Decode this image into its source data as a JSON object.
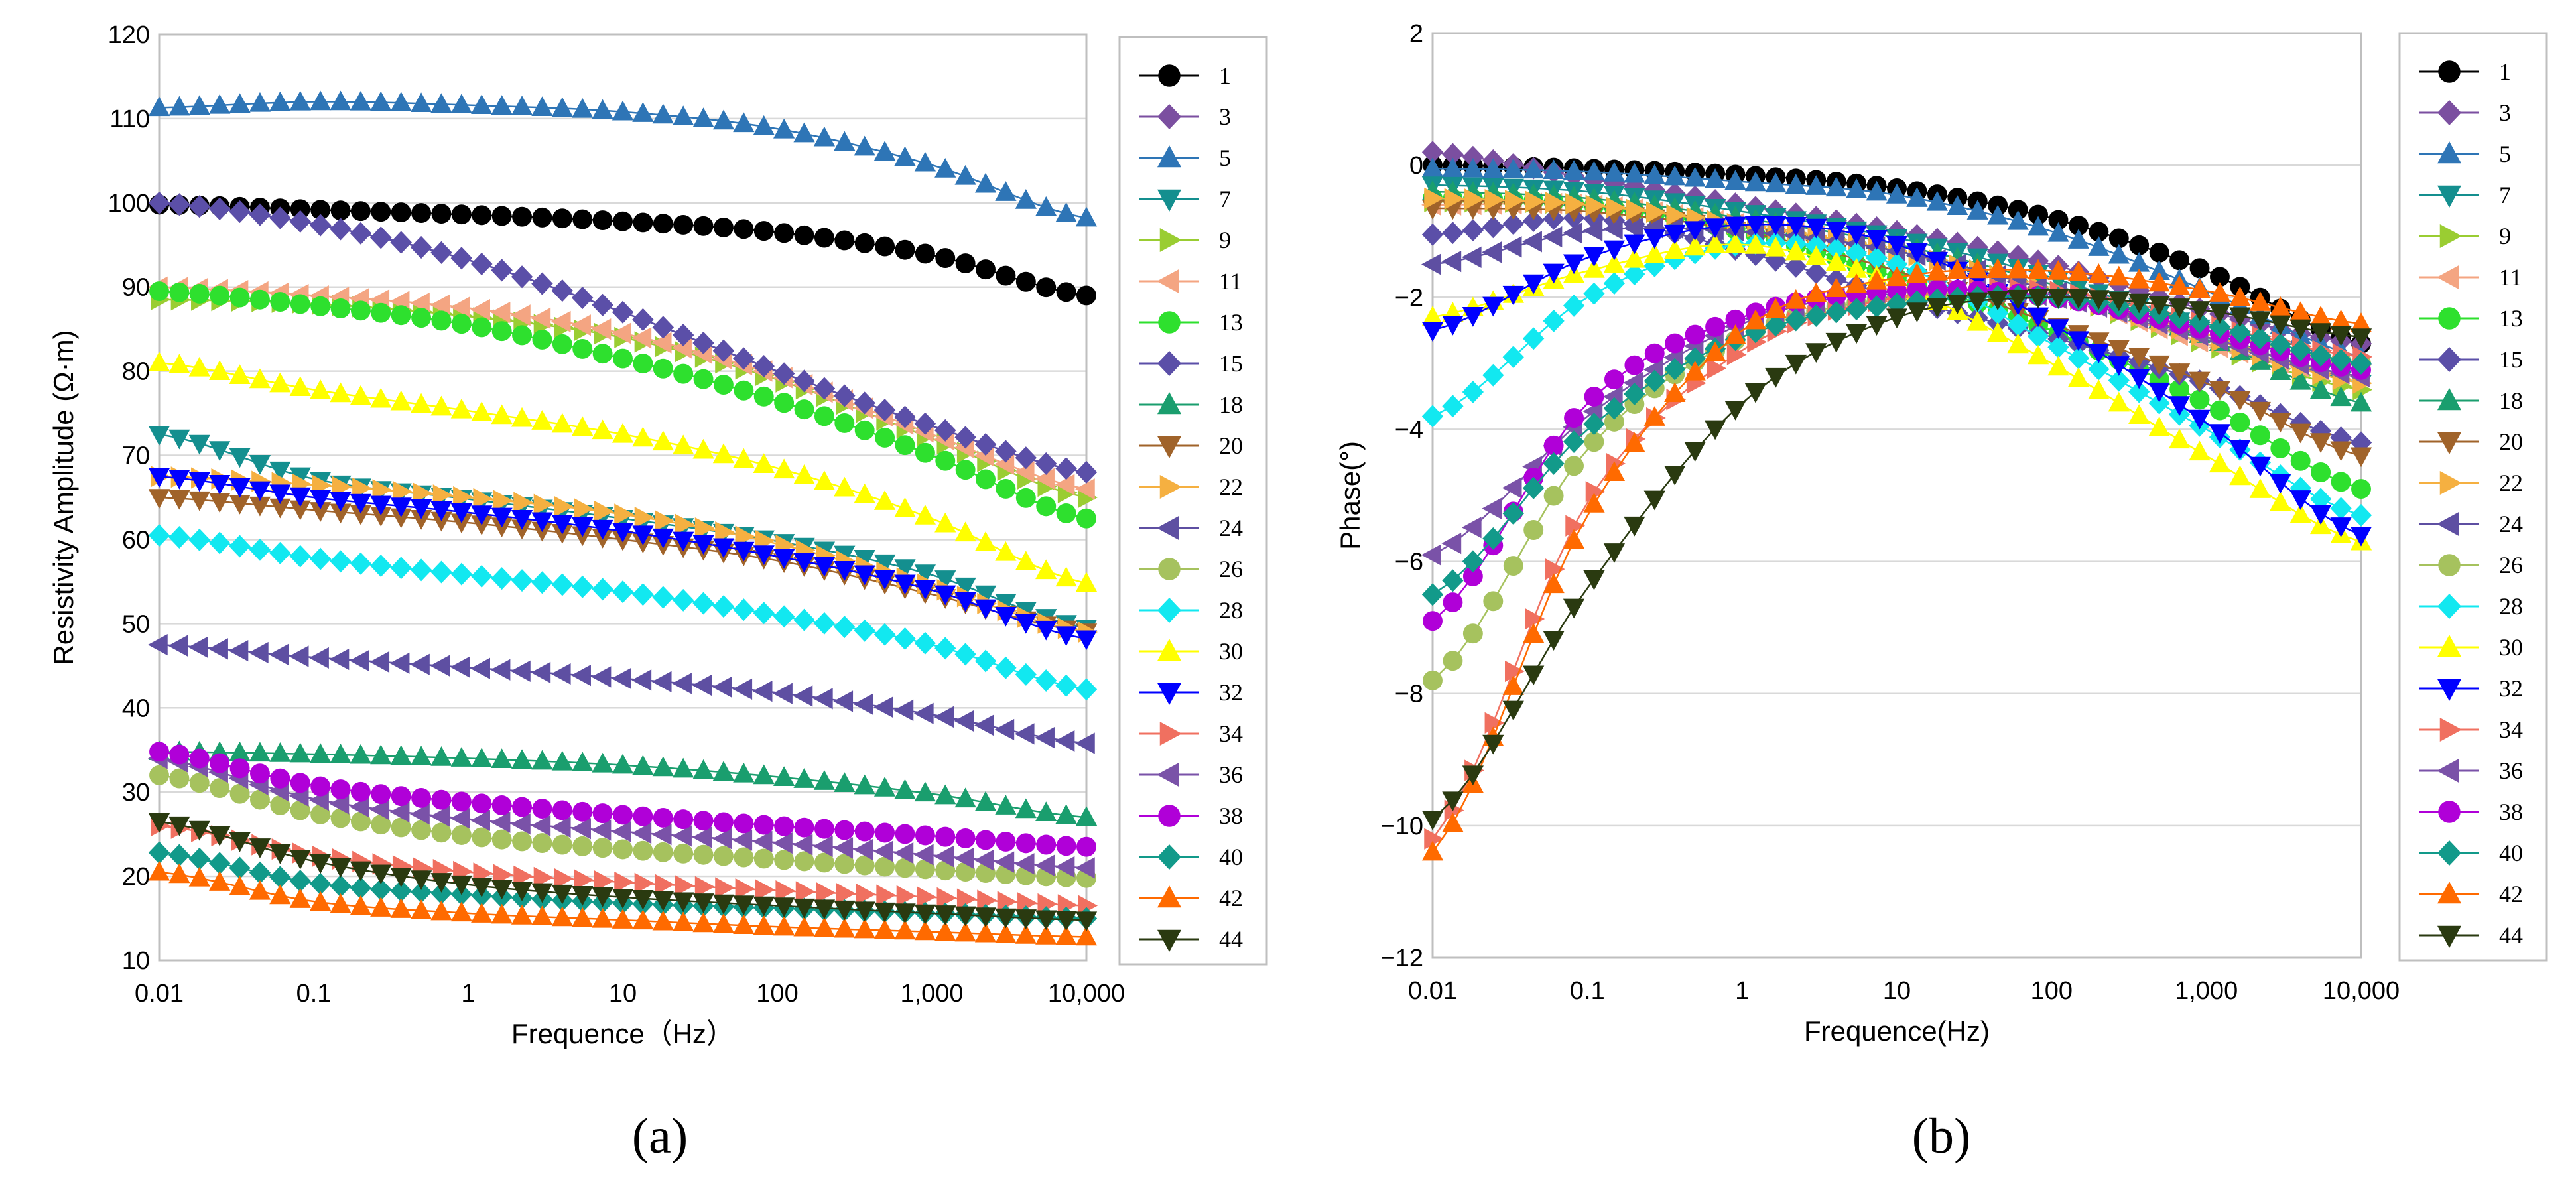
{
  "figure": {
    "captions": [
      "(a)",
      "(b)"
    ],
    "colors": {
      "1": "#000000",
      "3": "#7b4fa0",
      "5": "#2e75b6",
      "7": "#148f8f",
      "9": "#9acd32",
      "11": "#f4a582",
      "13": "#2ee02e",
      "15": "#5b4fa8",
      "18": "#1a9e6e",
      "20": "#a0632a",
      "22": "#f5b041",
      "24": "#5e4fa2",
      "26": "#a6c25e",
      "28": "#12e8f0",
      "30": "#ffff00",
      "32": "#0000ff",
      "34": "#f07060",
      "36": "#7a52a8",
      "38": "#b000d8",
      "40": "#129a8a",
      "42": "#ff6a00",
      "44": "#2a3a10"
    },
    "markers": {
      "1": "circle",
      "3": "diamond",
      "5": "triangle-up",
      "7": "triangle-down",
      "9": "triangle-right",
      "11": "triangle-left",
      "13": "circle",
      "15": "diamond",
      "18": "triangle-up",
      "20": "triangle-down",
      "22": "triangle-right",
      "24": "triangle-left",
      "26": "circle",
      "28": "diamond",
      "30": "triangle-up",
      "32": "triangle-down",
      "34": "triangle-right",
      "36": "triangle-left",
      "38": "circle",
      "40": "diamond",
      "42": "triangle-up",
      "44": "triangle-down"
    }
  },
  "chart_data": [
    {
      "type": "scatter",
      "panel": "(a)",
      "title": "",
      "xlabel": "Frequence（Hz）",
      "ylabel": "Resistivity Amplitude (Ω·m)",
      "xscale": "log",
      "xlim": [
        0.01,
        10000
      ],
      "ylim": [
        10,
        120
      ],
      "x_ticks": [
        0.01,
        0.1,
        1,
        10,
        100,
        1000,
        10000
      ],
      "x_tick_labels": [
        "0.01",
        "0.1",
        "1",
        "10",
        "100",
        "1,000",
        "10,000"
      ],
      "y_ticks": [
        10,
        20,
        30,
        40,
        50,
        60,
        70,
        80,
        90,
        100,
        110,
        120
      ],
      "y_tick_labels": [
        "10",
        "20",
        "30",
        "40",
        "50",
        "60",
        "70",
        "80",
        "90",
        "100",
        "110",
        "120"
      ],
      "grid": "horizontal",
      "legend": "right",
      "x_samples": [
        0.01,
        0.1,
        1,
        10,
        100,
        1000,
        10000
      ],
      "series": [
        {
          "name": "1",
          "values": [
            99.8,
            99.2,
            98.6,
            97.8,
            96.5,
            93.8,
            89.0
          ]
        },
        {
          "name": "3",
          "values": [
            100.0,
            97.5,
            93.2,
            87.0,
            80.0,
            73.5,
            68.0
          ]
        },
        {
          "name": "5",
          "values": [
            111.3,
            112.0,
            111.6,
            110.8,
            108.8,
            104.5,
            98.2
          ]
        },
        {
          "name": "7",
          "values": [
            72.5,
            67.2,
            64.8,
            62.5,
            59.8,
            55.8,
            49.5
          ]
        },
        {
          "name": "9",
          "values": [
            88.5,
            88.0,
            86.5,
            84.0,
            79.0,
            72.0,
            65.0
          ]
        },
        {
          "name": "11",
          "values": [
            90.0,
            89.0,
            87.5,
            84.5,
            79.5,
            72.5,
            66.0
          ]
        },
        {
          "name": "13",
          "values": [
            89.5,
            87.8,
            85.5,
            81.5,
            76.5,
            70.0,
            62.5
          ]
        },
        {
          "name": "15",
          "values": [
            100.0,
            97.5,
            93.2,
            87.0,
            80.0,
            73.5,
            68.0
          ]
        },
        {
          "name": "18",
          "values": [
            34.8,
            34.5,
            34.0,
            33.2,
            31.8,
            29.8,
            27.0
          ]
        },
        {
          "name": "20",
          "values": [
            65.0,
            63.5,
            62.0,
            60.0,
            57.5,
            53.5,
            49.0
          ]
        },
        {
          "name": "22",
          "values": [
            67.5,
            66.5,
            65.0,
            63.0,
            59.5,
            54.5,
            49.0
          ]
        },
        {
          "name": "24",
          "values": [
            47.5,
            46.0,
            44.8,
            43.5,
            41.8,
            39.2,
            35.8
          ]
        },
        {
          "name": "26",
          "values": [
            32.0,
            27.5,
            24.8,
            23.2,
            22.0,
            20.8,
            19.8
          ]
        },
        {
          "name": "28",
          "values": [
            60.5,
            57.8,
            55.8,
            53.8,
            51.0,
            47.5,
            42.2
          ]
        },
        {
          "name": "30",
          "values": [
            81.0,
            77.8,
            75.3,
            72.5,
            68.5,
            62.5,
            54.8
          ]
        },
        {
          "name": "32",
          "values": [
            67.5,
            65.0,
            63.2,
            61.0,
            58.0,
            54.0,
            48.2
          ]
        },
        {
          "name": "34",
          "values": [
            26.0,
            22.5,
            20.5,
            19.3,
            18.3,
            17.5,
            16.5
          ]
        },
        {
          "name": "36",
          "values": [
            34.0,
            29.2,
            26.8,
            25.3,
            24.0,
            22.5,
            21.0
          ]
        },
        {
          "name": "38",
          "values": [
            34.8,
            30.8,
            28.8,
            27.3,
            26.0,
            24.8,
            23.5
          ]
        },
        {
          "name": "40",
          "values": [
            22.8,
            19.2,
            17.8,
            16.8,
            16.2,
            15.6,
            15.0
          ]
        },
        {
          "name": "42",
          "values": [
            20.5,
            17.0,
            15.6,
            14.8,
            14.0,
            13.4,
            12.8
          ]
        },
        {
          "name": "44",
          "values": [
            26.5,
            21.8,
            19.0,
            17.5,
            16.5,
            15.6,
            14.8
          ]
        }
      ]
    },
    {
      "type": "scatter",
      "panel": "(b)",
      "title": "",
      "xlabel": "Frequence(Hz)",
      "ylabel": "Phase(°)",
      "xscale": "log",
      "xlim": [
        0.01,
        10000
      ],
      "ylim": [
        -12,
        2
      ],
      "x_ticks": [
        0.01,
        0.1,
        1,
        10,
        100,
        1000,
        10000
      ],
      "x_tick_labels": [
        "0.01",
        "0.1",
        "1",
        "10",
        "100",
        "1,000",
        "10,000"
      ],
      "y_ticks": [
        -12,
        -10,
        -8,
        -6,
        -4,
        -2,
        0,
        2
      ],
      "y_tick_labels": [
        "−12",
        "−10",
        "−8",
        "−6",
        "−4",
        "−2",
        "0",
        "2"
      ],
      "grid": "horizontal",
      "legend": "right",
      "x_samples": [
        0.01,
        0.1,
        1,
        10,
        100,
        1000,
        10000
      ],
      "series": [
        {
          "name": "1",
          "values": [
            0.0,
            -0.05,
            -0.15,
            -0.35,
            -0.8,
            -1.6,
            -2.7
          ]
        },
        {
          "name": "3",
          "values": [
            0.2,
            -0.2,
            -0.6,
            -1.0,
            -1.5,
            -2.2,
            -2.7
          ]
        },
        {
          "name": "5",
          "values": [
            -0.05,
            -0.1,
            -0.25,
            -0.45,
            -1.0,
            -1.9,
            -2.9
          ]
        },
        {
          "name": "7",
          "values": [
            -0.3,
            -0.4,
            -0.7,
            -1.1,
            -1.7,
            -2.5,
            -3.3
          ]
        },
        {
          "name": "9",
          "values": [
            -0.55,
            -0.6,
            -0.9,
            -1.3,
            -1.9,
            -2.7,
            -3.4
          ]
        },
        {
          "name": "11",
          "values": [
            -0.6,
            -0.6,
            -0.9,
            -1.3,
            -1.9,
            -2.7,
            -3.2
          ]
        },
        {
          "name": "13",
          "values": [
            -0.5,
            -0.6,
            -1.0,
            -1.7,
            -2.5,
            -3.6,
            -4.9
          ]
        },
        {
          "name": "15",
          "values": [
            -1.05,
            -0.8,
            -1.3,
            -2.0,
            -2.6,
            -3.3,
            -4.2
          ]
        },
        {
          "name": "18",
          "values": [
            -0.4,
            -0.5,
            -0.8,
            -1.2,
            -1.8,
            -2.6,
            -3.6
          ]
        },
        {
          "name": "20",
          "values": [
            -0.65,
            -0.7,
            -1.0,
            -1.6,
            -2.4,
            -3.3,
            -4.4
          ]
        },
        {
          "name": "22",
          "values": [
            -0.5,
            -0.6,
            -0.9,
            -1.3,
            -1.9,
            -2.6,
            -3.3
          ]
        },
        {
          "name": "24",
          "values": [
            -1.5,
            -1.0,
            -1.0,
            -1.3,
            -1.9,
            -2.6,
            -3.2
          ]
        },
        {
          "name": "26",
          "values": [
            -7.8,
            -4.3,
            -2.6,
            -2.0,
            -2.0,
            -2.5,
            -3.0
          ]
        },
        {
          "name": "28",
          "values": [
            -3.8,
            -2.0,
            -1.2,
            -1.5,
            -2.7,
            -4.0,
            -5.3
          ]
        },
        {
          "name": "30",
          "values": [
            -2.3,
            -1.6,
            -1.2,
            -1.8,
            -3.0,
            -4.4,
            -5.7
          ]
        },
        {
          "name": "32",
          "values": [
            -2.5,
            -1.4,
            -0.9,
            -1.2,
            -2.4,
            -3.9,
            -5.6
          ]
        },
        {
          "name": "34",
          "values": [
            -10.2,
            -5.1,
            -2.8,
            -2.0,
            -1.9,
            -2.4,
            -2.9
          ]
        },
        {
          "name": "36",
          "values": [
            -5.9,
            -3.8,
            -2.4,
            -1.9,
            -2.0,
            -2.6,
            -3.2
          ]
        },
        {
          "name": "38",
          "values": [
            -6.9,
            -3.6,
            -2.3,
            -1.9,
            -2.0,
            -2.5,
            -3.1
          ]
        },
        {
          "name": "40",
          "values": [
            -6.5,
            -4.0,
            -2.6,
            -2.1,
            -2.0,
            -2.4,
            -3.0
          ]
        },
        {
          "name": "42",
          "values": [
            -10.4,
            -5.3,
            -2.5,
            -1.7,
            -1.6,
            -1.9,
            -2.4
          ]
        },
        {
          "name": "44",
          "values": [
            -9.9,
            -6.4,
            -3.6,
            -2.3,
            -2.0,
            -2.2,
            -2.6
          ]
        }
      ]
    }
  ]
}
